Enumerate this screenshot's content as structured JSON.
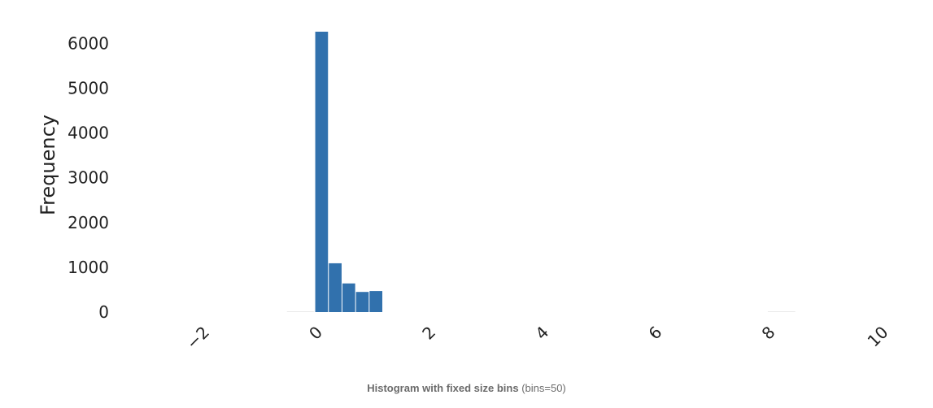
{
  "chart_data": {
    "type": "bar",
    "title": "",
    "xlabel": "",
    "ylabel": "Frequency",
    "xlim": [
      -3.2,
      10.1
    ],
    "ylim": [
      0,
      6500
    ],
    "x_ticks": [
      -2,
      0,
      2,
      4,
      6,
      8,
      10
    ],
    "x_tick_labels": [
      "−2",
      "0",
      "2",
      "4",
      "6",
      "8",
      "10"
    ],
    "y_ticks": [
      0,
      1000,
      2000,
      3000,
      4000,
      5000,
      6000
    ],
    "y_tick_labels": [
      "0",
      "1000",
      "2000",
      "3000",
      "4000",
      "5000",
      "6000"
    ],
    "grid": false,
    "bar_color": "#3171ad",
    "bins": [
      {
        "x0": -0.5,
        "x1": -0.01,
        "value": 5
      },
      {
        "x0": 0.0,
        "x1": 0.24,
        "value": 6260
      },
      {
        "x0": 0.24,
        "x1": 0.48,
        "value": 1090
      },
      {
        "x0": 0.48,
        "x1": 0.72,
        "value": 640
      },
      {
        "x0": 0.72,
        "x1": 0.96,
        "value": 450
      },
      {
        "x0": 0.96,
        "x1": 1.2,
        "value": 470
      },
      {
        "x0": 8.0,
        "x1": 8.5,
        "value": 5
      }
    ]
  },
  "caption": {
    "bold": "Histogram with fixed size bins",
    "normal": " (bins=50)"
  }
}
